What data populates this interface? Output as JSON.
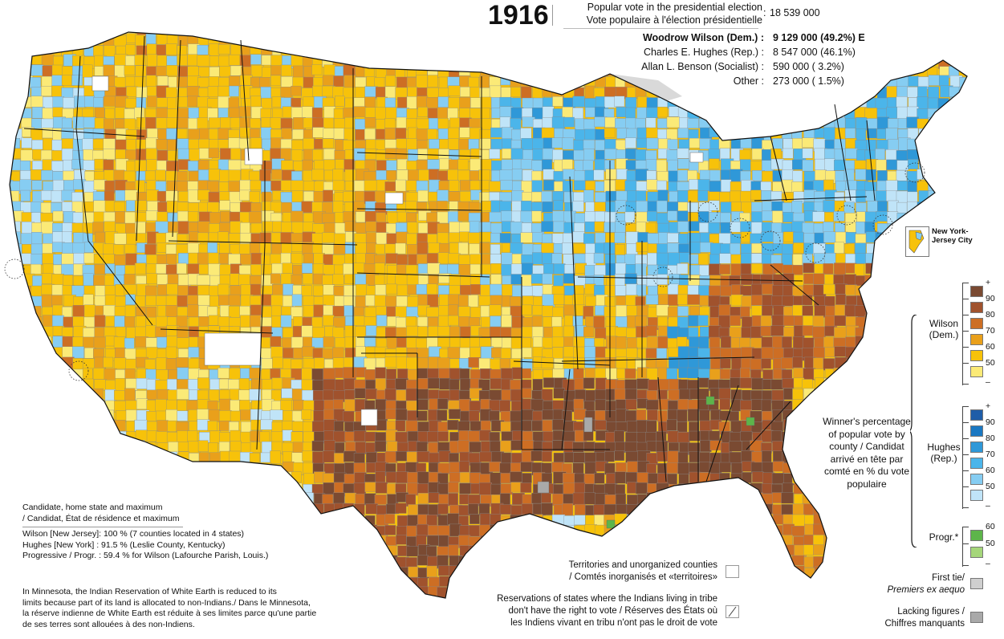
{
  "header": {
    "year": "1916",
    "popular_vote_label_en": "Popular vote in the presidential election",
    "popular_vote_label_fr": "Vote populaire à l'élection présidentielle",
    "popular_vote_total": "18 539 000"
  },
  "results": [
    {
      "name": "Woodrow Wilson (Dem.) :",
      "value": "9 129 000  (49.2%)  E",
      "bold": true
    },
    {
      "name": "Charles E. Hughes (Rep.) :",
      "value": "8 547 000  (46.1%)",
      "bold": false
    },
    {
      "name": "Allan L. Benson (Socialist) :",
      "value": "  590 000  (  3.2%)",
      "bold": false
    },
    {
      "name": "Other :",
      "value": "  273 000  (  1.5%)",
      "bold": false
    }
  ],
  "inset": {
    "label": "New York-Jersey City"
  },
  "legend": {
    "wilson_label": "Wilson (Dem.)",
    "hughes_label": "Hughes (Rep.)",
    "progr_label": "Progr.*",
    "center_label": "Winner's percentage of popular vote by county / Candidat arrivé en tête par comté en % du vote populaire",
    "wilson_scale": [
      {
        "label": "+",
        "color": "#7a4a32"
      },
      {
        "label": "90",
        "color": "#a0522d"
      },
      {
        "label": "80",
        "color": "#cd6e24"
      },
      {
        "label": "70",
        "color": "#e9a01b"
      },
      {
        "label": "60",
        "color": "#f7c20a"
      },
      {
        "label": "50",
        "color": "#fbea77"
      }
    ],
    "hughes_scale": [
      {
        "label": "+",
        "color": "#1f5da8"
      },
      {
        "label": "90",
        "color": "#1a78c2"
      },
      {
        "label": "80",
        "color": "#2f98d8"
      },
      {
        "label": "70",
        "color": "#4bb5ea"
      },
      {
        "label": "60",
        "color": "#86cdf2"
      },
      {
        "label": "50",
        "color": "#c0e4f8"
      }
    ],
    "progr_scale": [
      {
        "label": "60",
        "color": "#5db54a"
      },
      {
        "label": "50",
        "color": "#a5d67a"
      }
    ],
    "minus": "–",
    "first_tie": "First tie/ Premiers ex aequo",
    "first_tie_en": "First tie/",
    "first_tie_fr": "Premiers ex aequo",
    "first_tie_color": "#cfcfcf",
    "lacking_en": "Lacking figures /",
    "lacking_fr": "Chiffres manquants",
    "lacking_color": "#a9a9a9"
  },
  "notes": {
    "maximum_title_1": "Candidate, home state and maximum",
    "maximum_title_2": "/ Candidat, État de résidence et maximum",
    "wilson_max": "Wilson [New Jersey]: 100 % (7 counties located in 4 states)",
    "hughes_max": "Hughes [New York]   :   91.5 % (Leslie County, Kentucky)",
    "progr_max": "Progressive  / Progr. :   59.4 % for Wilson (Lafourche Parish, Louis.)",
    "minnesota_1": "In Minnesota, the Indian Reservation of White Earth is reduced to its",
    "minnesota_2": "limits because part of its land is allocated to non-Indians./ Dans le Minnesota,",
    "minnesota_3": "la réserve indienne de White Earth est réduite à ses limites parce qu'une partie",
    "minnesota_4": "de ses terres sont allouées à des non-Indiens.",
    "territories_1": "Territories and unorganized counties",
    "territories_2": "/ Comtés inorganisés et «territoires»",
    "reservations_1": "Reservations of states where the Indians living in tribe",
    "reservations_2": "don't have the right to vote / Réserves des États où",
    "reservations_3": "les Indiens vivant en tribu n'ont pas le droit de vote"
  }
}
